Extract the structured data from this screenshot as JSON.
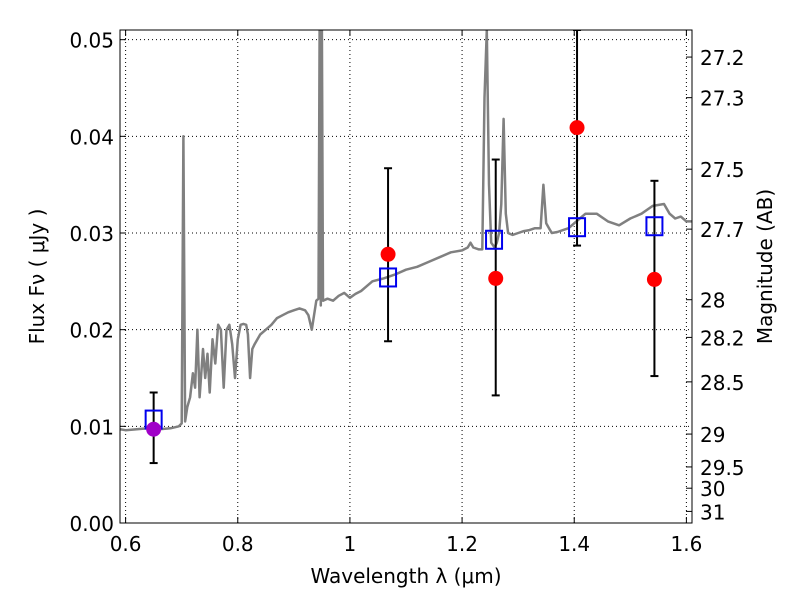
{
  "chart_data": {
    "type": "scatter",
    "xlabel": "Wavelength  λ (μm)",
    "ylabel": "Flux  Fν  ( μJy )",
    "ylabel_right": "Magnitude (AB)",
    "xlim": [
      0.59,
      1.61
    ],
    "ylim": [
      0.0,
      0.051
    ],
    "grid": true,
    "x_ticks": [
      0.6,
      0.8,
      1.0,
      1.2,
      1.4,
      1.6
    ],
    "x_tick_labels": [
      "0.6",
      "0.8",
      "1",
      "1.2",
      "1.4",
      "1.6"
    ],
    "y_ticks": [
      0.0,
      0.01,
      0.02,
      0.03,
      0.04,
      0.05
    ],
    "y_tick_labels": [
      "0.00",
      "0.01",
      "0.02",
      "0.03",
      "0.04",
      "0.05"
    ],
    "mag_ticks": [
      {
        "label": "27.2",
        "flux": 0.0482
      },
      {
        "label": "27.3",
        "flux": 0.044
      },
      {
        "label": "27.5",
        "flux": 0.0366
      },
      {
        "label": "27.7",
        "flux": 0.0304
      },
      {
        "label": "28",
        "flux": 0.0231
      },
      {
        "label": "28.2",
        "flux": 0.0192
      },
      {
        "label": "28.5",
        "flux": 0.0146
      },
      {
        "label": "29",
        "flux": 0.0092
      },
      {
        "label": "29.5",
        "flux": 0.0058
      },
      {
        "label": "30",
        "flux": 0.0036
      },
      {
        "label": "31",
        "flux": 0.0012
      }
    ],
    "series": [
      {
        "kind": "line",
        "color": "#808080",
        "points": [
          [
            0.59,
            0.0097
          ],
          [
            0.6,
            0.0096
          ],
          [
            0.62,
            0.0097
          ],
          [
            0.64,
            0.0098
          ],
          [
            0.66,
            0.0097
          ],
          [
            0.68,
            0.0098
          ],
          [
            0.695,
            0.01
          ],
          [
            0.7,
            0.0103
          ],
          [
            0.703,
            0.04
          ],
          [
            0.706,
            0.0105
          ],
          [
            0.71,
            0.012
          ],
          [
            0.715,
            0.013
          ],
          [
            0.72,
            0.0155
          ],
          [
            0.724,
            0.014
          ],
          [
            0.728,
            0.02
          ],
          [
            0.732,
            0.013
          ],
          [
            0.738,
            0.018
          ],
          [
            0.742,
            0.015
          ],
          [
            0.746,
            0.0175
          ],
          [
            0.75,
            0.0135
          ],
          [
            0.755,
            0.019
          ],
          [
            0.76,
            0.0165
          ],
          [
            0.765,
            0.0205
          ],
          [
            0.77,
            0.02
          ],
          [
            0.775,
            0.014
          ],
          [
            0.78,
            0.02
          ],
          [
            0.785,
            0.0205
          ],
          [
            0.79,
            0.0185
          ],
          [
            0.795,
            0.015
          ],
          [
            0.8,
            0.019
          ],
          [
            0.805,
            0.0205
          ],
          [
            0.81,
            0.0206
          ],
          [
            0.815,
            0.0205
          ],
          [
            0.818,
            0.0195
          ],
          [
            0.822,
            0.015
          ],
          [
            0.826,
            0.018
          ],
          [
            0.83,
            0.0185
          ],
          [
            0.84,
            0.0195
          ],
          [
            0.85,
            0.02
          ],
          [
            0.86,
            0.0205
          ],
          [
            0.87,
            0.0212
          ],
          [
            0.88,
            0.0215
          ],
          [
            0.89,
            0.0218
          ],
          [
            0.9,
            0.022
          ],
          [
            0.91,
            0.0222
          ],
          [
            0.92,
            0.022
          ],
          [
            0.926,
            0.0215
          ],
          [
            0.932,
            0.02
          ],
          [
            0.94,
            0.023
          ],
          [
            0.944,
            0.0232
          ],
          [
            0.946,
            0.051
          ],
          [
            0.948,
            0.0225
          ],
          [
            0.95,
            0.051
          ],
          [
            0.952,
            0.023
          ],
          [
            0.96,
            0.0232
          ],
          [
            0.97,
            0.023
          ],
          [
            0.98,
            0.0235
          ],
          [
            0.99,
            0.0238
          ],
          [
            1.0,
            0.0233
          ],
          [
            1.01,
            0.0237
          ],
          [
            1.02,
            0.024
          ],
          [
            1.03,
            0.0245
          ],
          [
            1.04,
            0.025
          ],
          [
            1.06,
            0.0253
          ],
          [
            1.08,
            0.0257
          ],
          [
            1.1,
            0.0262
          ],
          [
            1.12,
            0.0265
          ],
          [
            1.14,
            0.027
          ],
          [
            1.16,
            0.0275
          ],
          [
            1.18,
            0.028
          ],
          [
            1.2,
            0.0282
          ],
          [
            1.21,
            0.0285
          ],
          [
            1.215,
            0.029
          ],
          [
            1.22,
            0.0285
          ],
          [
            1.23,
            0.0283
          ],
          [
            1.236,
            0.0283
          ],
          [
            1.24,
            0.044
          ],
          [
            1.244,
            0.051
          ],
          [
            1.248,
            0.035
          ],
          [
            1.252,
            0.029
          ],
          [
            1.258,
            0.0285
          ],
          [
            1.262,
            0.029
          ],
          [
            1.266,
            0.03
          ],
          [
            1.27,
            0.033
          ],
          [
            1.274,
            0.0418
          ],
          [
            1.278,
            0.032
          ],
          [
            1.282,
            0.03
          ],
          [
            1.29,
            0.0298
          ],
          [
            1.3,
            0.03
          ],
          [
            1.31,
            0.0302
          ],
          [
            1.32,
            0.0303
          ],
          [
            1.33,
            0.0305
          ],
          [
            1.34,
            0.0305
          ],
          [
            1.345,
            0.035
          ],
          [
            1.35,
            0.031
          ],
          [
            1.355,
            0.0305
          ],
          [
            1.36,
            0.03
          ],
          [
            1.37,
            0.0301
          ],
          [
            1.38,
            0.0303
          ],
          [
            1.39,
            0.0305
          ],
          [
            1.4,
            0.031
          ],
          [
            1.41,
            0.0315
          ],
          [
            1.42,
            0.032
          ],
          [
            1.44,
            0.032
          ],
          [
            1.46,
            0.0312
          ],
          [
            1.48,
            0.0308
          ],
          [
            1.5,
            0.0315
          ],
          [
            1.52,
            0.032
          ],
          [
            1.54,
            0.0328
          ],
          [
            1.56,
            0.033
          ],
          [
            1.57,
            0.032
          ],
          [
            1.58,
            0.0315
          ],
          [
            1.59,
            0.0317
          ],
          [
            1.6,
            0.0312
          ],
          [
            1.61,
            0.0312
          ]
        ]
      },
      {
        "kind": "errorbar",
        "color": "#000000",
        "points": [
          {
            "x": 0.65,
            "low": 0.0062,
            "high": 0.0135
          },
          {
            "x": 1.068,
            "low": 0.0188,
            "high": 0.0367
          },
          {
            "x": 1.26,
            "low": 0.0132,
            "high": 0.0376
          },
          {
            "x": 1.405,
            "low": 0.0287,
            "high": 0.051
          },
          {
            "x": 1.543,
            "low": 0.0152,
            "high": 0.0354
          }
        ]
      },
      {
        "kind": "square",
        "color": "#0000ee",
        "points": [
          [
            0.65,
            0.0107
          ],
          [
            1.068,
            0.0254
          ],
          [
            1.257,
            0.0293
          ],
          [
            1.405,
            0.0306
          ],
          [
            1.543,
            0.0307
          ]
        ]
      },
      {
        "kind": "circle",
        "color": "#ff0000",
        "points": [
          [
            1.068,
            0.0278
          ],
          [
            1.26,
            0.0253
          ],
          [
            1.405,
            0.0409
          ],
          [
            1.543,
            0.0252
          ]
        ]
      },
      {
        "kind": "circle",
        "color": "#a000c8",
        "points": [
          [
            0.65,
            0.0097
          ]
        ]
      }
    ]
  }
}
